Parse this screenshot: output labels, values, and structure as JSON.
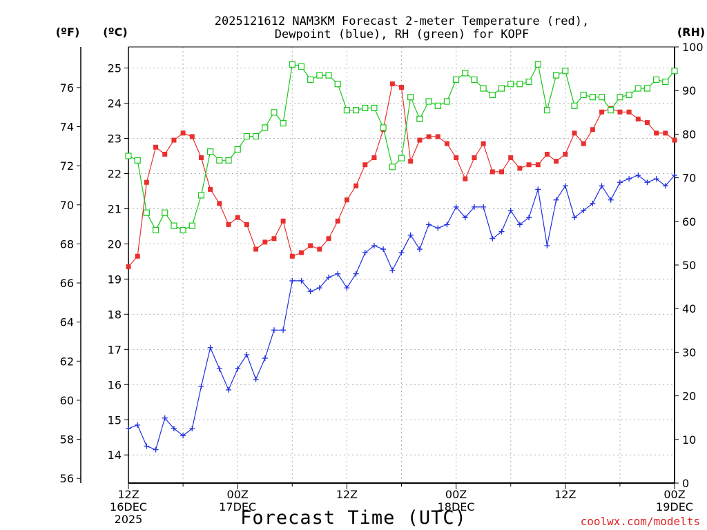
{
  "title_line1": "2025121612 NAM3KM Forecast 2-meter Temperature (red),",
  "title_line2": "Dewpoint (blue), RH (green) for KOPF",
  "units": {
    "fahrenheit": "(ºF)",
    "celsius": "(ºC)",
    "rh": "(RH)"
  },
  "xlabel": "Forecast Time (UTC)",
  "credit": "coolwx.com/modelts",
  "colors": {
    "temperature": "#e8302e",
    "dewpoint": "#2030e0",
    "rh": "#18c818",
    "grid": "#b0b0b0",
    "credit": "#e02020"
  },
  "chart_data": {
    "type": "line",
    "title": "2025121612 NAM3KM Forecast 2-meter Temperature (red), Dewpoint (blue), RH (green) for KOPF",
    "xlabel": "Forecast Time (UTC)",
    "x_hours_from_start": [
      0,
      1,
      2,
      3,
      4,
      5,
      6,
      7,
      8,
      9,
      10,
      11,
      12,
      13,
      14,
      15,
      16,
      17,
      18,
      19,
      20,
      21,
      22,
      23,
      24,
      25,
      26,
      27,
      28,
      29,
      30,
      31,
      32,
      33,
      34,
      35,
      36,
      37,
      38,
      39,
      40,
      41,
      42,
      43,
      44,
      45,
      46,
      47,
      48,
      49,
      50,
      51,
      52,
      53,
      54,
      55,
      56,
      57,
      58,
      59,
      60
    ],
    "x_tick_labels": [
      {
        "hour": 0,
        "lines": [
          "12Z",
          "16DEC",
          "2025"
        ]
      },
      {
        "hour": 12,
        "lines": [
          "00Z",
          "17DEC"
        ]
      },
      {
        "hour": 24,
        "lines": [
          "12Z"
        ]
      },
      {
        "hour": 36,
        "lines": [
          "00Z",
          "18DEC"
        ]
      },
      {
        "hour": 48,
        "lines": [
          "12Z"
        ]
      },
      {
        "hour": 60,
        "lines": [
          "00Z",
          "19DEC"
        ]
      }
    ],
    "xlim": [
      0,
      60
    ],
    "y_celsius": {
      "label": "(ºC)",
      "lim": [
        13.2,
        25.6
      ],
      "ticks": [
        14,
        15,
        16,
        17,
        18,
        19,
        20,
        21,
        22,
        23,
        24,
        25
      ]
    },
    "y_fahrenheit": {
      "label": "(ºF)",
      "ticks": [
        56,
        58,
        60,
        62,
        64,
        66,
        68,
        70,
        72,
        74,
        76
      ]
    },
    "y_rh": {
      "label": "(RH)",
      "lim": [
        0,
        100
      ],
      "ticks": [
        0,
        10,
        20,
        30,
        40,
        50,
        60,
        70,
        80,
        90,
        100
      ]
    },
    "grid": true,
    "series": [
      {
        "name": "Temperature",
        "axis": "celsius",
        "color": "#e8302e",
        "marker": "filled-square",
        "values": [
          19.35,
          19.65,
          21.75,
          22.75,
          22.55,
          22.95,
          23.15,
          23.05,
          22.45,
          21.55,
          21.15,
          20.55,
          20.75,
          20.55,
          19.85,
          20.05,
          20.15,
          20.65,
          19.65,
          19.75,
          19.95,
          19.85,
          20.15,
          20.65,
          21.25,
          21.65,
          22.25,
          22.45,
          23.25,
          24.55,
          24.45,
          22.35,
          22.95,
          23.05,
          23.05,
          22.85,
          22.45,
          21.85,
          22.45,
          22.85,
          22.05,
          22.05,
          22.45,
          22.15,
          22.25,
          22.25,
          22.55,
          22.35,
          22.55,
          23.15,
          22.85,
          23.25,
          23.75,
          23.85,
          23.75,
          23.75,
          23.55,
          23.45,
          23.15,
          23.15,
          22.95
        ]
      },
      {
        "name": "Dewpoint",
        "axis": "celsius",
        "color": "#2030e0",
        "marker": "plus",
        "values": [
          14.75,
          14.85,
          14.25,
          14.15,
          15.05,
          14.75,
          14.55,
          14.75,
          15.95,
          17.05,
          16.45,
          15.85,
          16.45,
          16.85,
          16.15,
          16.75,
          17.55,
          17.55,
          18.95,
          18.95,
          18.65,
          18.75,
          19.05,
          19.15,
          18.75,
          19.15,
          19.75,
          19.95,
          19.85,
          19.25,
          19.75,
          20.25,
          19.85,
          20.55,
          20.45,
          20.55,
          21.05,
          20.75,
          21.05,
          21.05,
          20.15,
          20.35,
          20.95,
          20.55,
          20.75,
          21.55,
          19.95,
          21.25,
          21.65,
          20.75,
          20.95,
          21.15,
          21.65,
          21.25,
          21.75,
          21.85,
          21.95,
          21.75,
          21.85,
          21.65,
          21.95
        ]
      },
      {
        "name": "RH",
        "axis": "rh",
        "color": "#18c818",
        "marker": "open-square",
        "values": [
          75,
          74,
          62,
          58,
          62,
          59,
          58,
          59,
          66,
          76,
          74,
          74,
          76.5,
          79.5,
          79.5,
          81.5,
          85,
          82.5,
          96,
          95.5,
          92.5,
          93.5,
          93.5,
          91.5,
          85.5,
          85.5,
          86,
          86,
          81.5,
          72.5,
          74.5,
          88.5,
          83.5,
          87.5,
          86.5,
          87.5,
          92.5,
          94,
          92.5,
          90.5,
          89,
          90.5,
          91.5,
          91.5,
          92,
          96,
          85.5,
          93.5,
          94.5,
          86.5,
          89,
          88.5,
          88.5,
          85.5,
          88.5,
          89,
          90.5,
          90.5,
          92.5,
          92,
          94.5
        ]
      }
    ]
  }
}
